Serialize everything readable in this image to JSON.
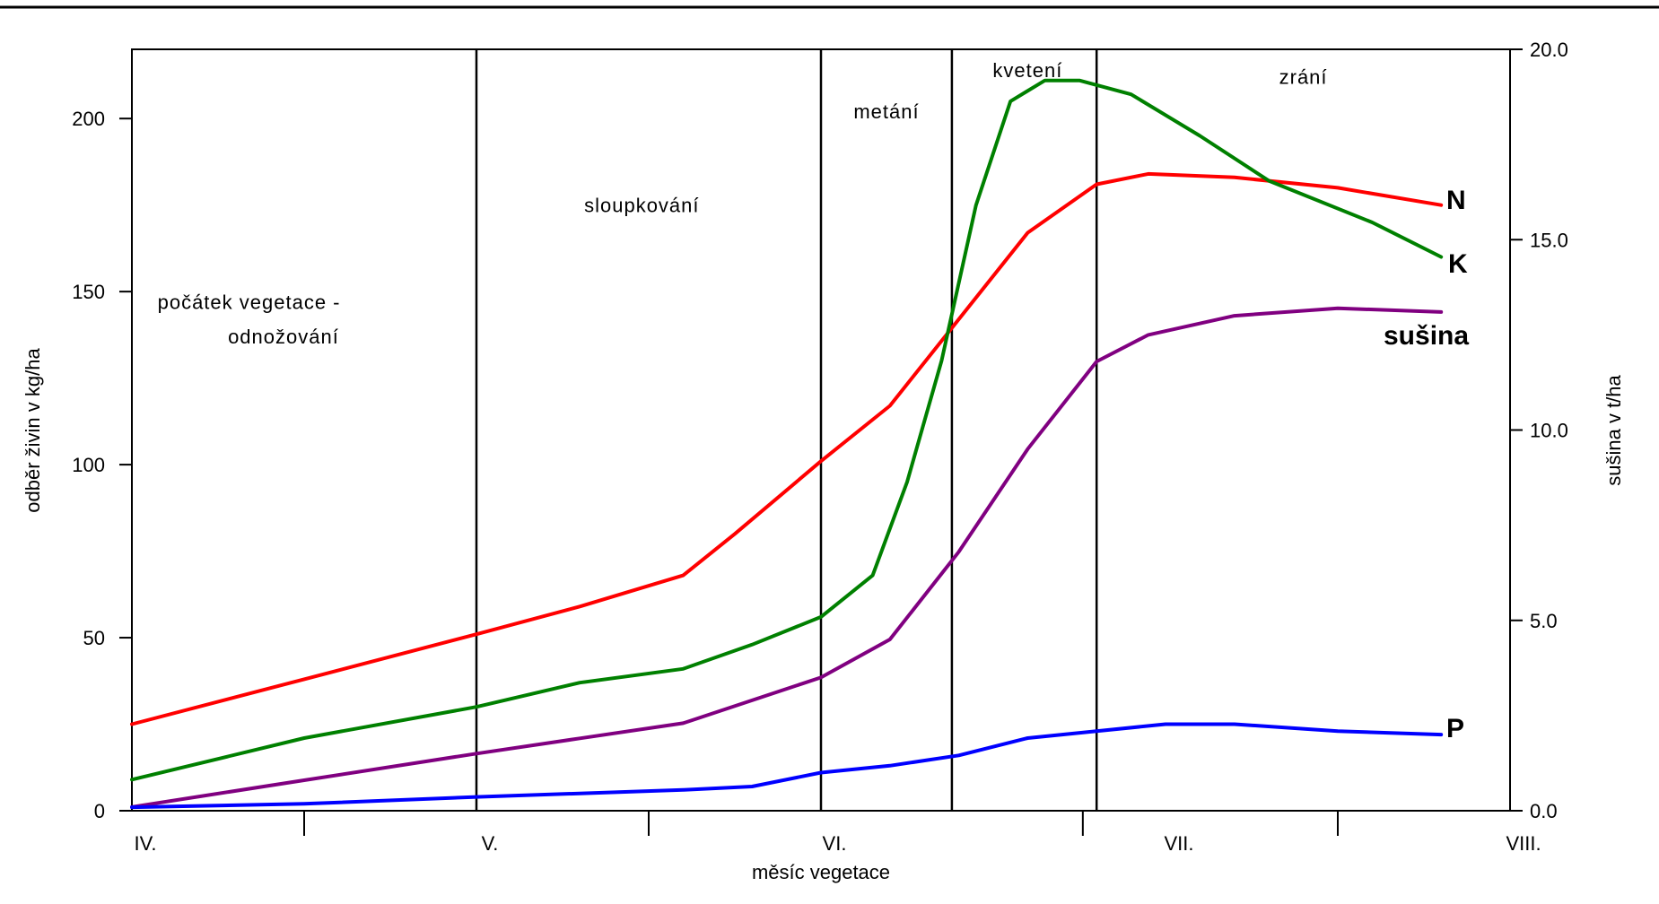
{
  "chart_data": {
    "type": "line",
    "xlabel": "měsíc vegetace",
    "ylabel_left": "odběr živin v kg/ha",
    "ylabel_right": "sušina v t/ha",
    "ylim_left": [
      0,
      220
    ],
    "ylim_right": [
      0,
      20
    ],
    "xlim": [
      0,
      4
    ],
    "x_ticks": [
      0,
      1,
      2,
      3,
      4
    ],
    "x_tick_labels": [
      "IV.",
      "V.",
      "VI.",
      "VII.",
      "VIII."
    ],
    "y_left_ticks": [
      0,
      50,
      100,
      150,
      200
    ],
    "y_left_tick_labels": [
      "0",
      "50",
      "100",
      "150",
      "200"
    ],
    "y_right_ticks": [
      0,
      5,
      10,
      15,
      20
    ],
    "y_right_tick_labels": [
      "0.0",
      "5.0",
      "10.0",
      "15.0",
      "20.0"
    ],
    "grid": false,
    "phase_dividers": [
      1.0,
      2.0,
      2.38,
      2.8
    ],
    "phase_labels": [
      {
        "text": "počátek vegetace    -",
        "x": 0.34,
        "y": 145
      },
      {
        "text": "odnožování",
        "x": 0.44,
        "y": 135
      },
      {
        "text": "sloupkování",
        "x": 1.48,
        "y": 173
      },
      {
        "text": "metání",
        "x": 2.19,
        "y": 200
      },
      {
        "text": "kvetení",
        "x": 2.6,
        "y": 212
      },
      {
        "text": "zrání",
        "x": 3.4,
        "y": 210
      }
    ],
    "series": [
      {
        "name": "N",
        "axis": "left",
        "color": "#ff0000",
        "x": [
          0,
          0.5,
          1.0,
          1.3,
          1.6,
          1.75,
          2.0,
          2.2,
          2.4,
          2.6,
          2.8,
          2.95,
          3.2,
          3.5,
          3.8
        ],
        "values": [
          25,
          38,
          51,
          59,
          68,
          80,
          101,
          117,
          142,
          167,
          181,
          184,
          183,
          180,
          175
        ]
      },
      {
        "name": "K",
        "axis": "left",
        "color": "#008000",
        "x": [
          0,
          0.5,
          1.0,
          1.3,
          1.6,
          1.8,
          2.0,
          2.15,
          2.25,
          2.35,
          2.45,
          2.55,
          2.65,
          2.75,
          2.9,
          3.1,
          3.3,
          3.6,
          3.8
        ],
        "values": [
          9,
          21,
          30,
          37,
          41,
          48,
          56,
          68,
          95,
          130,
          175,
          205,
          211,
          211,
          207,
          195,
          182,
          170,
          160
        ]
      },
      {
        "name": "sušina",
        "axis": "right",
        "color": "#800080",
        "x": [
          0,
          0.5,
          1.0,
          1.3,
          1.6,
          1.8,
          2.0,
          2.2,
          2.4,
          2.6,
          2.8,
          2.95,
          3.2,
          3.5,
          3.8
        ],
        "values": [
          0.1,
          0.8,
          1.5,
          1.9,
          2.3,
          2.9,
          3.5,
          4.5,
          6.8,
          9.5,
          11.8,
          12.5,
          13.0,
          13.2,
          13.1
        ]
      },
      {
        "name": "P",
        "axis": "left",
        "color": "#0000ff",
        "x": [
          0,
          0.5,
          1.0,
          1.3,
          1.6,
          1.8,
          2.0,
          2.2,
          2.4,
          2.6,
          2.8,
          3.0,
          3.2,
          3.5,
          3.8
        ],
        "values": [
          1,
          2,
          4,
          5,
          6,
          7,
          11,
          13,
          16,
          21,
          23,
          25,
          25,
          23,
          22
        ]
      }
    ]
  }
}
